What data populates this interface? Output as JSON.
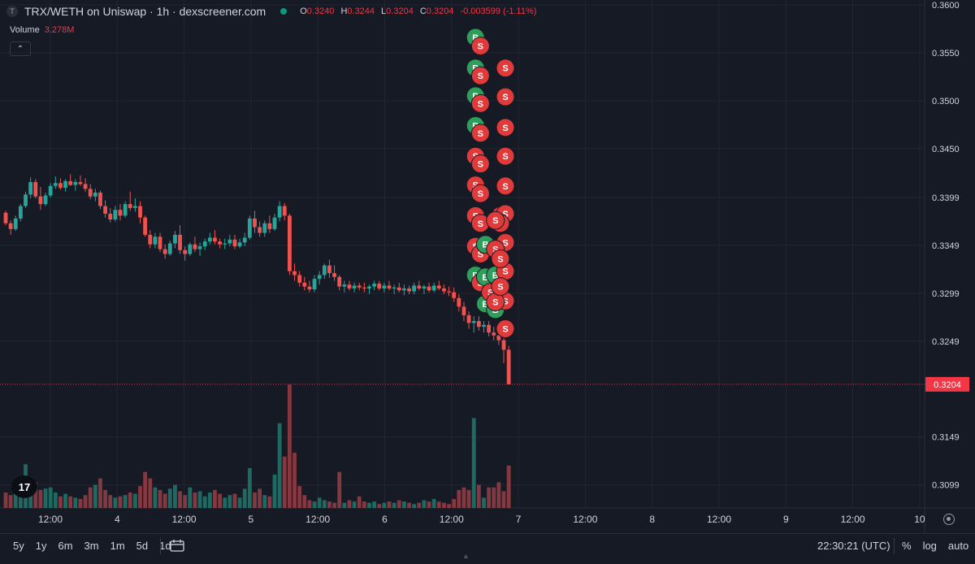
{
  "header": {
    "logo_letter": "T",
    "title": "TRX/WETH on Uniswap · 1h · dexscreener.com",
    "ohlc": [
      {
        "key": "O",
        "value": "0.3240"
      },
      {
        "key": "H",
        "value": "0.3244"
      },
      {
        "key": "L",
        "value": "0.3204"
      },
      {
        "key": "C",
        "value": "0.3204"
      }
    ],
    "change": "-0.003599 (-1.11%)"
  },
  "volume": {
    "label": "Volume",
    "value": "3.278M"
  },
  "collapse_icon": "chevron-up-icon",
  "logo_text": "17",
  "colors": {
    "bg": "#161a25",
    "up": "#26a69a",
    "down": "#ef5350",
    "grid": "#232632",
    "text": "#d1d4dc",
    "price_label": "#f23645"
  },
  "chart_data": {
    "type": "candlestick",
    "price_axis": {
      "ticks": [
        0.36,
        0.355,
        0.35,
        0.345,
        0.3399,
        0.3349,
        0.3299,
        0.3249,
        0.3204,
        0.3149,
        0.3099
      ],
      "tick_labels": [
        "0.3600",
        "0.3550",
        "0.3500",
        "0.3450",
        "0.3399",
        "0.3349",
        "0.3299",
        "0.3249",
        "0.3204",
        "0.3149",
        "0.3099"
      ],
      "ylim": [
        0.3075,
        0.3605
      ]
    },
    "time_axis": {
      "labels": [
        "12:00",
        "4",
        "12:00",
        "5",
        "12:00",
        "6",
        "12:00",
        "7",
        "12:00",
        "8",
        "12:00",
        "9",
        "12:00",
        "10"
      ],
      "x": [
        36,
        60,
        84,
        108,
        132,
        156,
        180,
        204,
        228,
        252,
        276,
        300,
        324,
        348
      ]
    },
    "current_price": "0.3204",
    "candles": [
      [
        0,
        0.3383,
        0.3385,
        0.337,
        0.3372,
        1.2
      ],
      [
        1,
        0.3372,
        0.3375,
        0.336,
        0.3366,
        1.0
      ],
      [
        2,
        0.3366,
        0.338,
        0.3364,
        0.3377,
        1.4
      ],
      [
        3,
        0.3377,
        0.3392,
        0.3374,
        0.339,
        1.6
      ],
      [
        4,
        0.339,
        0.3405,
        0.3388,
        0.3402,
        3.4
      ],
      [
        5,
        0.3402,
        0.342,
        0.3398,
        0.3415,
        2.4
      ],
      [
        6,
        0.3415,
        0.3418,
        0.3398,
        0.34,
        2.0
      ],
      [
        7,
        0.34,
        0.341,
        0.3386,
        0.3392,
        1.4
      ],
      [
        8,
        0.3392,
        0.3404,
        0.339,
        0.3401,
        1.5
      ],
      [
        9,
        0.3401,
        0.3414,
        0.3399,
        0.3411,
        1.6
      ],
      [
        10,
        0.3411,
        0.3421,
        0.3408,
        0.3414,
        1.2
      ],
      [
        11,
        0.3414,
        0.3419,
        0.3407,
        0.3409,
        0.9
      ],
      [
        12,
        0.3409,
        0.3418,
        0.3405,
        0.3416,
        1.1
      ],
      [
        13,
        0.3416,
        0.3423,
        0.3411,
        0.3412,
        0.9
      ],
      [
        14,
        0.3412,
        0.3418,
        0.3406,
        0.3415,
        0.8
      ],
      [
        15,
        0.3415,
        0.3422,
        0.3411,
        0.3413,
        0.7
      ],
      [
        16,
        0.3413,
        0.3419,
        0.3405,
        0.3408,
        1.0
      ],
      [
        17,
        0.3408,
        0.3413,
        0.3397,
        0.34,
        1.6
      ],
      [
        18,
        0.34,
        0.3408,
        0.3395,
        0.3404,
        1.8
      ],
      [
        19,
        0.3404,
        0.3406,
        0.3387,
        0.339,
        2.3
      ],
      [
        20,
        0.339,
        0.3396,
        0.3378,
        0.3382,
        1.4
      ],
      [
        21,
        0.3382,
        0.3388,
        0.3373,
        0.3376,
        1.0
      ],
      [
        22,
        0.3376,
        0.339,
        0.3374,
        0.3386,
        0.8
      ],
      [
        23,
        0.3386,
        0.3392,
        0.3375,
        0.338,
        0.9
      ],
      [
        24,
        0.338,
        0.3395,
        0.3378,
        0.3392,
        1.0
      ],
      [
        25,
        0.3392,
        0.3405,
        0.3385,
        0.3388,
        1.2
      ],
      [
        26,
        0.3388,
        0.3398,
        0.3384,
        0.339,
        1.1
      ],
      [
        27,
        0.339,
        0.3395,
        0.3372,
        0.3378,
        1.7
      ],
      [
        28,
        0.3378,
        0.338,
        0.3358,
        0.336,
        2.8
      ],
      [
        29,
        0.336,
        0.3365,
        0.3346,
        0.335,
        2.3
      ],
      [
        30,
        0.335,
        0.3362,
        0.3346,
        0.3358,
        1.6
      ],
      [
        31,
        0.3358,
        0.3362,
        0.3342,
        0.3345,
        1.4
      ],
      [
        32,
        0.3345,
        0.335,
        0.3335,
        0.334,
        1.1
      ],
      [
        33,
        0.334,
        0.3354,
        0.3338,
        0.3351,
        1.5
      ],
      [
        34,
        0.3351,
        0.3364,
        0.3346,
        0.336,
        1.8
      ],
      [
        35,
        0.336,
        0.337,
        0.334,
        0.3344,
        1.3
      ],
      [
        36,
        0.3344,
        0.3348,
        0.3333,
        0.334,
        1.0
      ],
      [
        37,
        0.334,
        0.3352,
        0.3338,
        0.335,
        1.6
      ],
      [
        38,
        0.335,
        0.3358,
        0.3342,
        0.3345,
        1.2
      ],
      [
        39,
        0.3345,
        0.3352,
        0.3338,
        0.3348,
        1.3
      ],
      [
        40,
        0.3348,
        0.3356,
        0.3344,
        0.3353,
        0.9
      ],
      [
        41,
        0.3353,
        0.3362,
        0.335,
        0.3357,
        1.2
      ],
      [
        42,
        0.3357,
        0.3365,
        0.335,
        0.3353,
        1.4
      ],
      [
        43,
        0.3353,
        0.3356,
        0.3346,
        0.335,
        1.1
      ],
      [
        44,
        0.335,
        0.3356,
        0.3345,
        0.3351,
        0.8
      ],
      [
        45,
        0.3351,
        0.336,
        0.3348,
        0.3355,
        1.0
      ],
      [
        46,
        0.3355,
        0.336,
        0.3345,
        0.3348,
        1.1
      ],
      [
        47,
        0.3348,
        0.3356,
        0.3346,
        0.3352,
        0.8
      ],
      [
        48,
        0.3352,
        0.3362,
        0.3348,
        0.3357,
        1.5
      ],
      [
        49,
        0.3357,
        0.338,
        0.3355,
        0.3377,
        3.1
      ],
      [
        50,
        0.3377,
        0.3385,
        0.3362,
        0.3368,
        1.2
      ],
      [
        51,
        0.3368,
        0.3374,
        0.3358,
        0.3362,
        1.5
      ],
      [
        52,
        0.3362,
        0.3375,
        0.3358,
        0.3372,
        1.0
      ],
      [
        53,
        0.3372,
        0.338,
        0.3362,
        0.3366,
        0.9
      ],
      [
        54,
        0.3366,
        0.3382,
        0.3364,
        0.3378,
        2.6
      ],
      [
        55,
        0.3378,
        0.3395,
        0.3374,
        0.339,
        6.6
      ],
      [
        56,
        0.339,
        0.3393,
        0.3375,
        0.338,
        4.0
      ],
      [
        57,
        0.338,
        0.3382,
        0.3318,
        0.3322,
        9.6
      ],
      [
        58,
        0.3322,
        0.333,
        0.3312,
        0.3318,
        4.3
      ],
      [
        59,
        0.3318,
        0.3322,
        0.3306,
        0.331,
        1.7
      ],
      [
        60,
        0.331,
        0.3316,
        0.3302,
        0.3306,
        1.0
      ],
      [
        61,
        0.3306,
        0.3312,
        0.33,
        0.3303,
        0.6
      ],
      [
        62,
        0.3303,
        0.3318,
        0.33,
        0.3314,
        0.5
      ],
      [
        63,
        0.3314,
        0.3322,
        0.3308,
        0.3318,
        0.8
      ],
      [
        64,
        0.3318,
        0.333,
        0.3314,
        0.3328,
        0.6
      ],
      [
        65,
        0.3328,
        0.3334,
        0.3315,
        0.332,
        0.5
      ],
      [
        66,
        0.332,
        0.3328,
        0.3312,
        0.3316,
        0.4
      ],
      [
        67,
        0.3316,
        0.3318,
        0.3302,
        0.3306,
        2.8
      ],
      [
        68,
        0.3306,
        0.3312,
        0.33,
        0.3308,
        0.4
      ],
      [
        69,
        0.3308,
        0.3312,
        0.3302,
        0.3304,
        0.6
      ],
      [
        70,
        0.3304,
        0.331,
        0.33,
        0.3307,
        0.5
      ],
      [
        71,
        0.3307,
        0.331,
        0.3302,
        0.3305,
        0.9
      ],
      [
        72,
        0.3305,
        0.331,
        0.33,
        0.3304,
        0.5
      ],
      [
        73,
        0.3304,
        0.3308,
        0.3298,
        0.3306,
        0.4
      ],
      [
        74,
        0.3306,
        0.3312,
        0.3302,
        0.3309,
        0.5
      ],
      [
        75,
        0.3309,
        0.3312,
        0.3302,
        0.3304,
        0.3
      ],
      [
        76,
        0.3304,
        0.331,
        0.33,
        0.3307,
        0.4
      ],
      [
        77,
        0.3307,
        0.3312,
        0.3302,
        0.3304,
        0.5
      ],
      [
        78,
        0.3304,
        0.3308,
        0.3298,
        0.3305,
        0.4
      ],
      [
        79,
        0.3305,
        0.331,
        0.33,
        0.3302,
        0.6
      ],
      [
        80,
        0.3302,
        0.3308,
        0.3297,
        0.3304,
        0.5
      ],
      [
        81,
        0.3304,
        0.3307,
        0.3298,
        0.3301,
        0.4
      ],
      [
        82,
        0.3301,
        0.331,
        0.3298,
        0.3307,
        0.3
      ],
      [
        83,
        0.3307,
        0.3312,
        0.3302,
        0.3304,
        0.4
      ],
      [
        84,
        0.3304,
        0.3308,
        0.3298,
        0.3306,
        0.6
      ],
      [
        85,
        0.3306,
        0.331,
        0.33,
        0.3302,
        0.5
      ],
      [
        86,
        0.3302,
        0.331,
        0.33,
        0.3307,
        0.7
      ],
      [
        87,
        0.3307,
        0.3312,
        0.3302,
        0.3304,
        0.5
      ],
      [
        88,
        0.3304,
        0.3308,
        0.3298,
        0.3301,
        0.4
      ],
      [
        89,
        0.3301,
        0.3306,
        0.3296,
        0.33,
        0.3
      ],
      [
        90,
        0.33,
        0.3305,
        0.329,
        0.3294,
        0.7
      ],
      [
        91,
        0.3294,
        0.3298,
        0.328,
        0.3285,
        1.4
      ],
      [
        92,
        0.3285,
        0.329,
        0.327,
        0.3276,
        1.6
      ],
      [
        93,
        0.3276,
        0.328,
        0.3262,
        0.3268,
        1.4
      ],
      [
        94,
        0.3268,
        0.3275,
        0.3258,
        0.327,
        7.0
      ],
      [
        95,
        0.327,
        0.3275,
        0.326,
        0.3264,
        1.8
      ],
      [
        96,
        0.3264,
        0.327,
        0.3258,
        0.3266,
        0.8
      ],
      [
        97,
        0.3266,
        0.327,
        0.3254,
        0.3258,
        1.6
      ],
      [
        98,
        0.3258,
        0.3264,
        0.325,
        0.3255,
        1.6
      ],
      [
        99,
        0.3255,
        0.326,
        0.3245,
        0.325,
        2.0
      ],
      [
        100,
        0.325,
        0.3253,
        0.3226,
        0.324,
        1.3
      ],
      [
        101,
        0.324,
        0.3244,
        0.3204,
        0.3204,
        3.3
      ]
    ],
    "trade_markers": [
      {
        "label": "B",
        "side": "buy",
        "bar": 94,
        "price": 0.3566
      },
      {
        "label": "S",
        "side": "sell",
        "bar": 95,
        "price": 0.3557
      },
      {
        "label": "B",
        "side": "buy",
        "bar": 94,
        "price": 0.3534
      },
      {
        "label": "S",
        "side": "sell",
        "bar": 95,
        "price": 0.3526
      },
      {
        "label": "B",
        "side": "buy",
        "bar": 94,
        "price": 0.3505
      },
      {
        "label": "S",
        "side": "sell",
        "bar": 95,
        "price": 0.3497
      },
      {
        "label": "B",
        "side": "buy",
        "bar": 94,
        "price": 0.3474
      },
      {
        "label": "S",
        "side": "sell",
        "bar": 95,
        "price": 0.3466
      },
      {
        "label": "S",
        "side": "sell",
        "bar": 94,
        "price": 0.3442
      },
      {
        "label": "S",
        "side": "sell",
        "bar": 95,
        "price": 0.3434
      },
      {
        "label": "S",
        "side": "sell",
        "bar": 94,
        "price": 0.3412
      },
      {
        "label": "S",
        "side": "sell",
        "bar": 95,
        "price": 0.3403
      },
      {
        "label": "S",
        "side": "sell",
        "bar": 94,
        "price": 0.338
      },
      {
        "label": "S",
        "side": "sell",
        "bar": 95,
        "price": 0.3372
      },
      {
        "label": "S",
        "side": "sell",
        "bar": 94,
        "price": 0.3348
      },
      {
        "label": "S",
        "side": "sell",
        "bar": 95,
        "price": 0.334
      },
      {
        "label": "B",
        "side": "buy",
        "bar": 94,
        "price": 0.3318
      },
      {
        "label": "S",
        "side": "sell",
        "bar": 95,
        "price": 0.331
      },
      {
        "label": "B",
        "side": "buy",
        "bar": 96,
        "price": 0.335
      },
      {
        "label": "B",
        "side": "buy",
        "bar": 96,
        "price": 0.3316
      },
      {
        "label": "B",
        "side": "buy",
        "bar": 96,
        "price": 0.3288
      },
      {
        "label": "B",
        "side": "buy",
        "bar": 98,
        "price": 0.3282
      },
      {
        "label": "S",
        "side": "sell",
        "bar": 97,
        "price": 0.33
      },
      {
        "label": "B",
        "side": "buy",
        "bar": 98,
        "price": 0.3318
      },
      {
        "label": "S",
        "side": "sell",
        "bar": 100,
        "price": 0.3534
      },
      {
        "label": "S",
        "side": "sell",
        "bar": 100,
        "price": 0.3504
      },
      {
        "label": "S",
        "side": "sell",
        "bar": 100,
        "price": 0.3472
      },
      {
        "label": "S",
        "side": "sell",
        "bar": 100,
        "price": 0.3442
      },
      {
        "label": "S",
        "side": "sell",
        "bar": 100,
        "price": 0.3411
      },
      {
        "label": "S",
        "side": "sell",
        "bar": 99,
        "price": 0.338
      },
      {
        "label": "S",
        "side": "sell",
        "bar": 100,
        "price": 0.3382
      },
      {
        "label": "S",
        "side": "sell",
        "bar": 100,
        "price": 0.3352
      },
      {
        "label": "S",
        "side": "sell",
        "bar": 100,
        "price": 0.3322
      },
      {
        "label": "S",
        "side": "sell",
        "bar": 100,
        "price": 0.3291
      },
      {
        "label": "S",
        "side": "sell",
        "bar": 100,
        "price": 0.3262
      },
      {
        "label": "S",
        "side": "sell",
        "bar": 98,
        "price": 0.329
      },
      {
        "label": "S",
        "side": "sell",
        "bar": 98,
        "price": 0.3345
      },
      {
        "label": "S",
        "side": "sell",
        "bar": 99,
        "price": 0.3335
      },
      {
        "label": "S",
        "side": "sell",
        "bar": 99,
        "price": 0.3306
      },
      {
        "label": "S",
        "side": "sell",
        "bar": 99,
        "price": 0.3372
      },
      {
        "label": "S",
        "side": "sell",
        "bar": 98,
        "price": 0.3375
      }
    ]
  },
  "bottom": {
    "ranges": [
      "5y",
      "1y",
      "6m",
      "3m",
      "1m",
      "5d",
      "1d"
    ],
    "calendar_icon": "calendar-icon",
    "clock": "22:30:21 (UTC)",
    "options": [
      "%",
      "log",
      "auto"
    ],
    "settings_icon": "gear-icon"
  }
}
